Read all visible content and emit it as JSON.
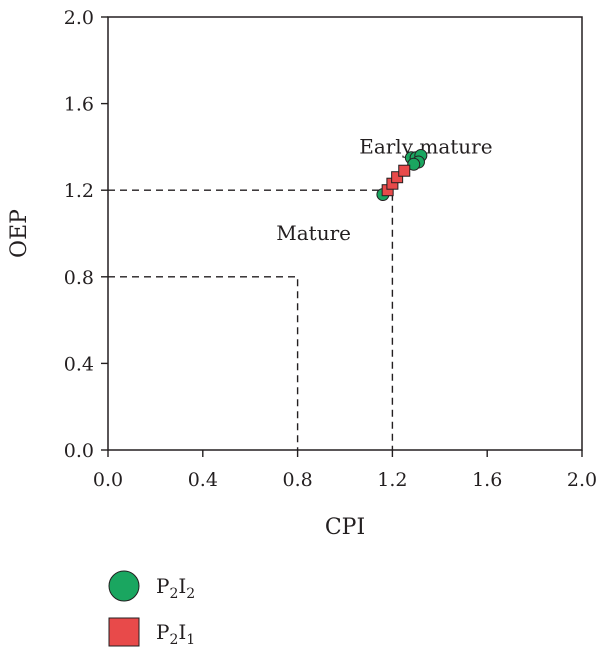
{
  "chart_data": {
    "type": "scatter",
    "xlabel": "CPI",
    "ylabel": "OEP",
    "xlim": [
      0.0,
      2.0
    ],
    "ylim": [
      0.0,
      2.0
    ],
    "x_ticks": [
      "0.0",
      "0.4",
      "0.8",
      "1.2",
      "1.6",
      "2.0"
    ],
    "y_ticks": [
      "0.0",
      "0.4",
      "0.8",
      "1.2",
      "1.6",
      "2.0"
    ],
    "grid": false,
    "legend_position": "bottom-left",
    "series": [
      {
        "name": "P2I2",
        "name_base1": "P",
        "name_sub1": "2",
        "name_base2": "I",
        "name_sub2": "2",
        "marker": "circle",
        "color": "#1aa660",
        "points": [
          {
            "x": 1.16,
            "y": 1.18
          },
          {
            "x": 1.28,
            "y": 1.35
          },
          {
            "x": 1.3,
            "y": 1.35
          },
          {
            "x": 1.32,
            "y": 1.36
          },
          {
            "x": 1.31,
            "y": 1.33
          },
          {
            "x": 1.29,
            "y": 1.32
          }
        ]
      },
      {
        "name": "P2I1",
        "name_base1": "P",
        "name_sub1": "2",
        "name_base2": "I",
        "name_sub2": "1",
        "marker": "square",
        "color": "#e84a4a",
        "points": [
          {
            "x": 1.18,
            "y": 1.2
          },
          {
            "x": 1.2,
            "y": 1.23
          },
          {
            "x": 1.22,
            "y": 1.26
          },
          {
            "x": 1.25,
            "y": 1.29
          }
        ]
      }
    ],
    "reference_lines": [
      {
        "name": "mature-boundary",
        "points": [
          [
            0.0,
            0.8
          ],
          [
            0.8,
            0.8
          ],
          [
            0.8,
            0.0
          ]
        ]
      },
      {
        "name": "early-mature-boundary",
        "points": [
          [
            0.0,
            1.2
          ],
          [
            1.2,
            1.2
          ],
          [
            1.2,
            0.0
          ]
        ]
      }
    ],
    "annotations": [
      {
        "text": "Early mature",
        "x": 1.06,
        "y": 1.37
      },
      {
        "text": "Mature",
        "x": 0.71,
        "y": 0.97
      }
    ]
  }
}
